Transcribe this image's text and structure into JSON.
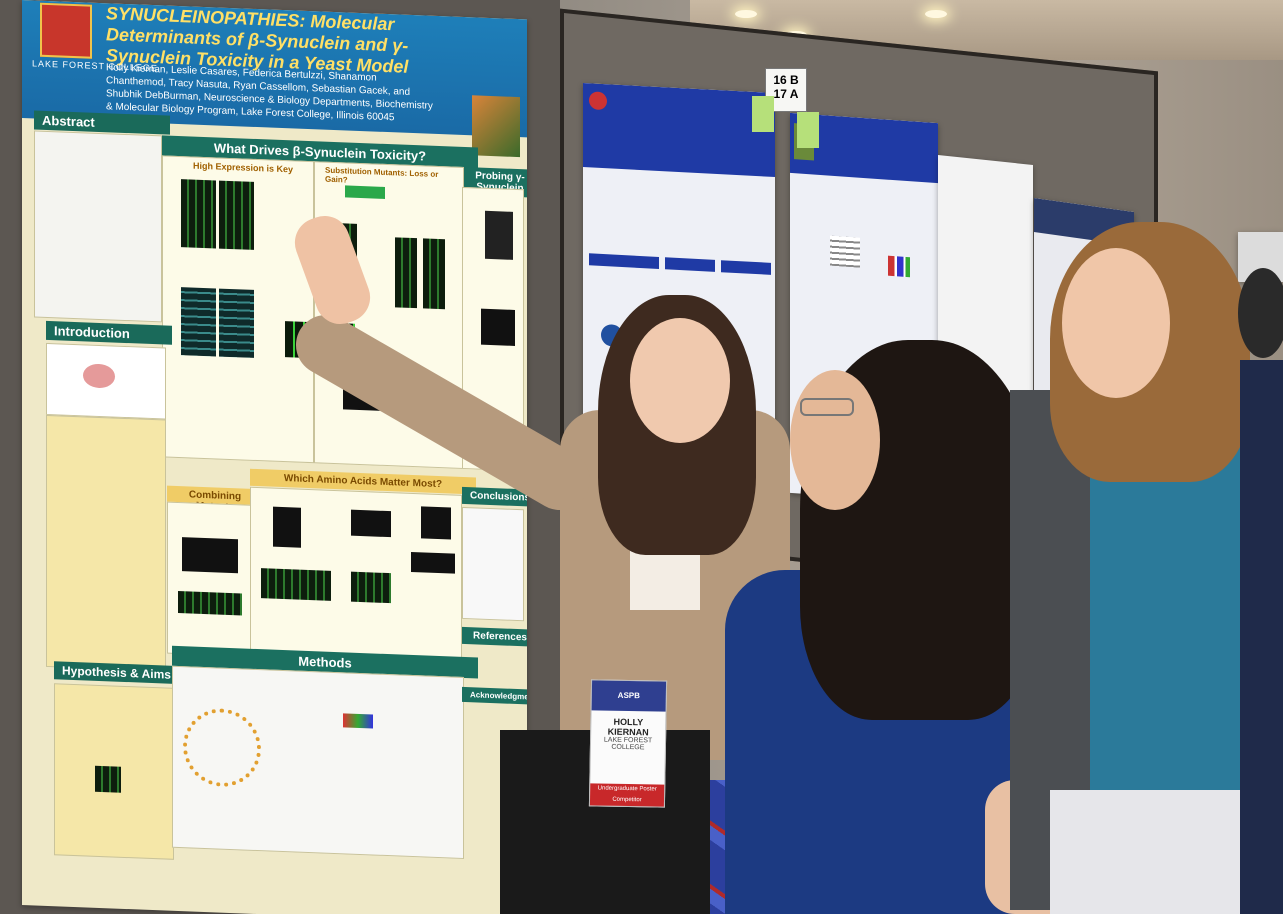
{
  "main_poster": {
    "college": "LAKE FOREST COLLEGE",
    "title": "SYNUCLEINOPATHIES: Molecular Determinants of β-Synuclein and γ-Synuclein Toxicity in a Yeast Model",
    "authors": "Holly Kiernan, Leslie Casares, Federica Bertulzzi, Shanamon Chanthemod, Tracy Nasuta, Ryan Cassellom, Sebastian Gacek, and Shubhik DebBurman, Neuroscience & Biology Departments, Biochemistry & Molecular Biology Program, Lake Forest College, Illinois 60045",
    "sections": {
      "abstract": "Abstract",
      "what_drives": "What Drives β-Synuclein Toxicity?",
      "probing": "Probing γ-Synuclein",
      "high_expression": "High Expression is Key",
      "substitution": "Substitution Mutants: Loss or Gain?",
      "introduction": "Introduction",
      "combining": "Combining Mutants",
      "which_amino": "Which Amino Acids Matter Most?",
      "conclusions": "Conclusions",
      "hypothesis": "Hypothesis & Aims",
      "methods": "Methods",
      "references": "References",
      "acknowledgments": "Acknowledgments"
    }
  },
  "sign": {
    "numbers": "16 B  17 A"
  },
  "badge": {
    "name": "HOLLY\nKIERNAN",
    "school": "LAKE FOREST\nCOLLEGE",
    "footer": "Undergraduate Poster\nCompetitor"
  },
  "colors": {
    "banner": "#1e7fb9",
    "section_header": "#1a6a5a",
    "poster_bg": "#efe9c8",
    "neighbor_header": "#1f3aa5"
  }
}
